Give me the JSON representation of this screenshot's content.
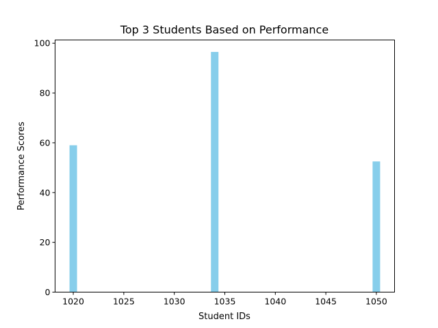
{
  "chart_data": {
    "type": "bar",
    "title": "Top 3 Students Based on Performance",
    "xlabel": "Student IDs",
    "ylabel": "Performance Scores",
    "x": [
      1020,
      1034,
      1050
    ],
    "values": [
      59,
      96.5,
      52.5
    ],
    "bar_color": "#87ceeb",
    "xlim": [
      1018.2,
      1051.8
    ],
    "ylim": [
      0,
      101.3
    ],
    "xticks": [
      1020,
      1025,
      1030,
      1035,
      1040,
      1045,
      1050
    ],
    "yticks": [
      0,
      20,
      40,
      60,
      80,
      100
    ],
    "grid": false
  }
}
